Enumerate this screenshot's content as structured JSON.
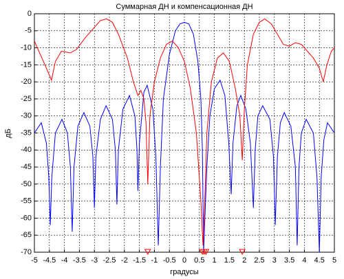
{
  "chart_data": {
    "type": "line",
    "title": "Суммарная ДН и компенсационная ДН",
    "xlabel": "градусы",
    "ylabel": "дБ",
    "xlim": [
      -5,
      5
    ],
    "ylim": [
      -70,
      0
    ],
    "xticks": [
      -5,
      -4.5,
      -4,
      -3.5,
      -3,
      -2.5,
      -2,
      -1.5,
      -1,
      -0.5,
      0,
      0.5,
      1,
      1.5,
      2,
      2.5,
      3,
      3.5,
      4,
      4.5,
      5
    ],
    "yticks": [
      0,
      -5,
      -10,
      -15,
      -20,
      -25,
      -30,
      -35,
      -40,
      -45,
      -50,
      -55,
      -60,
      -65,
      -70
    ],
    "grid": true,
    "series": [
      {
        "color": "#0000ff",
        "x": [
          -5,
          -4.77,
          -4.6,
          -4.52,
          -4.47,
          -4.42,
          -4.3,
          -4.08,
          -3.9,
          -3.8,
          -3.74,
          -3.68,
          -3.55,
          -3.35,
          -3.15,
          -3.05,
          -3,
          -2.95,
          -2.8,
          -2.61,
          -2.4,
          -2.3,
          -2.25,
          -2.2,
          -2.05,
          -1.83,
          -1.65,
          -1.58,
          -1.55,
          -1.5,
          -1.35,
          -1.24,
          -1.05,
          -0.95,
          -0.87,
          -0.8,
          -0.7,
          -0.5,
          -0.3,
          -0.15,
          0,
          0.15,
          0.3,
          0.45,
          0.55,
          0.6,
          0.64,
          0.75,
          0.85,
          1,
          1.19,
          1.35,
          1.48,
          1.56,
          1.62,
          1.75,
          1.88,
          2.05,
          2.2,
          2.3,
          2.36,
          2.45,
          2.61,
          2.85,
          2.97,
          3.03,
          3.1,
          3.2,
          3.33,
          3.55,
          3.7,
          3.76,
          3.82,
          3.9,
          4.06,
          4.3,
          4.42,
          4.5,
          4.56,
          4.65,
          4.77,
          5
        ],
        "values": [
          -35,
          -32,
          -38,
          -48,
          -62,
          -48,
          -35,
          -31,
          -35,
          -45,
          -64,
          -45,
          -33,
          -29,
          -33,
          -42,
          -57,
          -42,
          -31,
          -27,
          -31,
          -40,
          -56,
          -40,
          -28,
          -24,
          -30,
          -40,
          -52,
          -38,
          -23,
          -21,
          -28,
          -42,
          -68,
          -45,
          -25,
          -12,
          -5,
          -3,
          -2.5,
          -3,
          -6,
          -14,
          -25,
          -40,
          -70,
          -45,
          -30,
          -22,
          -19.5,
          -24,
          -38,
          -53,
          -38,
          -27,
          -24,
          -28,
          -38,
          -57,
          -40,
          -30,
          -27,
          -31,
          -42,
          -62,
          -42,
          -32,
          -29,
          -33,
          -45,
          -68,
          -45,
          -35,
          -31,
          -35,
          -48,
          -70,
          -48,
          -37,
          -32,
          -35
        ]
      },
      {
        "color": "#ff0000",
        "x": [
          -5,
          -4.8,
          -4.6,
          -4.43,
          -4.3,
          -4.1,
          -3.8,
          -3.6,
          -3.3,
          -3,
          -2.8,
          -2.6,
          -2.4,
          -2.2,
          -1.9,
          -1.7,
          -1.55,
          -1.45,
          -1.35,
          -1.28,
          -1.22,
          -1.15,
          -1,
          -0.8,
          -0.6,
          -0.4,
          -0.2,
          0,
          0.2,
          0.4,
          0.55,
          0.62,
          0.68,
          0.75,
          0.9,
          1.1,
          1.3,
          1.5,
          1.7,
          1.85,
          1.93,
          2,
          2.1,
          2.3,
          2.5,
          2.68,
          2.9,
          3.1,
          3.3,
          3.5,
          3.7,
          3.9,
          4.1,
          4.3,
          4.5,
          4.63,
          4.75,
          4.9,
          5
        ],
        "values": [
          -8,
          -12,
          -16,
          -19.5,
          -14,
          -11,
          -11.5,
          -10.5,
          -7,
          -4,
          -2,
          -1.5,
          -2.5,
          -6,
          -13,
          -20,
          -24,
          -22.5,
          -25,
          -32,
          -50,
          -30,
          -20,
          -13,
          -9,
          -8,
          -10,
          -14,
          -22,
          -35,
          -55,
          -68,
          -55,
          -35,
          -20,
          -13,
          -11.5,
          -14,
          -22,
          -30,
          -43,
          -28,
          -15,
          -6,
          -2.5,
          -1.5,
          -3,
          -6,
          -9,
          -9.5,
          -8.5,
          -9,
          -11,
          -13,
          -16,
          -20,
          -15,
          -11,
          -10
        ]
      }
    ],
    "markers": {
      "color": "#ff0000",
      "x": [
        -1.22,
        0.6,
        0.66,
        0.72,
        1.93
      ],
      "values": [
        -70,
        -70,
        -70,
        -70,
        -70
      ]
    }
  }
}
